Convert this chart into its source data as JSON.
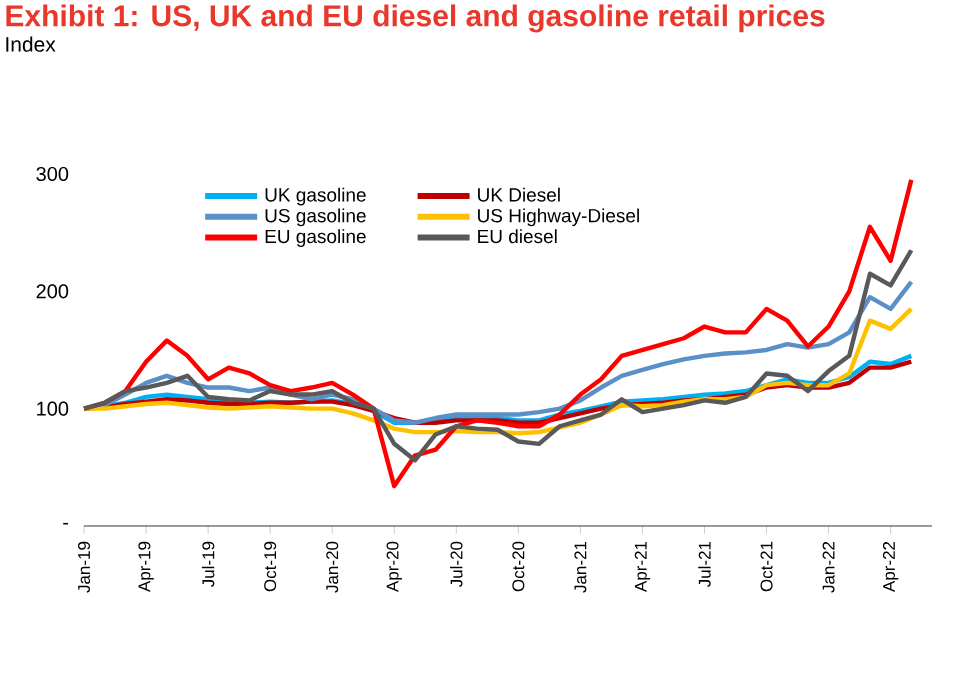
{
  "chart_data": {
    "type": "line",
    "title": "Exhibit 1: US, UK and EU diesel and gasoline retail prices",
    "subtitle": "Index",
    "x": [
      "2019-01",
      "2019-02",
      "2019-03",
      "2019-04",
      "2019-05",
      "2019-06",
      "2019-07",
      "2019-08",
      "2019-09",
      "2019-10",
      "2019-11",
      "2019-12",
      "2020-01",
      "2020-02",
      "2020-03",
      "2020-04",
      "2020-05",
      "2020-06",
      "2020-07",
      "2020-08",
      "2020-09",
      "2020-10",
      "2020-11",
      "2020-12",
      "2021-01",
      "2021-02",
      "2021-03",
      "2021-04",
      "2021-05",
      "2021-06",
      "2021-07",
      "2021-08",
      "2021-09",
      "2021-10",
      "2021-11",
      "2021-12",
      "2022-01",
      "2022-02",
      "2022-03",
      "2022-04",
      "2022-05"
    ],
    "series": [
      {
        "name": "UK gasoline",
        "color": "#00b0f0",
        "values": [
          100,
          102,
          105,
          110,
          112,
          110,
          108,
          106,
          105,
          106,
          105,
          106,
          107,
          104,
          98,
          88,
          88,
          90,
          92,
          93,
          92,
          90,
          90,
          95,
          98,
          102,
          106,
          107,
          108,
          110,
          112,
          113,
          115,
          120,
          125,
          122,
          122,
          127,
          140,
          138,
          145
        ]
      },
      {
        "name": "UK Diesel",
        "color": "#c00000",
        "values": [
          100,
          101,
          104,
          106,
          108,
          107,
          105,
          104,
          104,
          105,
          105,
          106,
          106,
          103,
          98,
          92,
          88,
          88,
          90,
          90,
          90,
          88,
          88,
          92,
          96,
          100,
          103,
          104,
          105,
          107,
          108,
          110,
          112,
          118,
          120,
          118,
          118,
          122,
          135,
          135,
          140
        ]
      },
      {
        "name": "US gasoline",
        "color": "#5b8fc7",
        "values": [
          100,
          103,
          112,
          122,
          128,
          122,
          118,
          118,
          115,
          118,
          112,
          108,
          112,
          108,
          100,
          90,
          88,
          92,
          95,
          95,
          95,
          95,
          97,
          100,
          107,
          118,
          128,
          133,
          138,
          142,
          145,
          147,
          148,
          150,
          155,
          152,
          155,
          165,
          195,
          185,
          208
        ]
      },
      {
        "name": "US Highway-Diesel",
        "color": "#ffc000",
        "values": [
          100,
          100,
          102,
          104,
          105,
          103,
          101,
          100,
          101,
          102,
          101,
          100,
          100,
          96,
          90,
          83,
          80,
          80,
          81,
          80,
          80,
          79,
          80,
          84,
          88,
          95,
          103,
          102,
          103,
          106,
          108,
          108,
          110,
          120,
          122,
          120,
          120,
          130,
          175,
          168,
          185
        ]
      },
      {
        "name": "EU gasoline",
        "color": "#ff0000",
        "values": [
          100,
          105,
          115,
          140,
          158,
          145,
          125,
          135,
          130,
          120,
          115,
          118,
          122,
          112,
          100,
          34,
          60,
          65,
          85,
          90,
          88,
          85,
          85,
          95,
          112,
          125,
          145,
          150,
          155,
          160,
          170,
          165,
          165,
          185,
          175,
          153,
          170,
          200,
          255,
          226,
          295
        ]
      },
      {
        "name": "EU diesel",
        "color": "#595959",
        "values": [
          100,
          105,
          115,
          118,
          122,
          128,
          110,
          108,
          107,
          115,
          112,
          112,
          115,
          105,
          100,
          70,
          56,
          78,
          85,
          83,
          82,
          72,
          70,
          85,
          90,
          95,
          108,
          97,
          100,
          103,
          107,
          105,
          110,
          130,
          128,
          115,
          132,
          145,
          215,
          205,
          235
        ]
      }
    ],
    "xlim": [
      "2019-01",
      "2022-06"
    ],
    "xticks": [
      {
        "value": "2019-01",
        "label": "Jan-19"
      },
      {
        "value": "2019-04",
        "label": "Apr-19"
      },
      {
        "value": "2019-07",
        "label": "Jul-19"
      },
      {
        "value": "2019-10",
        "label": "Oct-19"
      },
      {
        "value": "2020-01",
        "label": "Jan-20"
      },
      {
        "value": "2020-04",
        "label": "Apr-20"
      },
      {
        "value": "2020-07",
        "label": "Jul-20"
      },
      {
        "value": "2020-10",
        "label": "Oct-20"
      },
      {
        "value": "2021-01",
        "label": "Jan-21"
      },
      {
        "value": "2021-04",
        "label": "Apr-21"
      },
      {
        "value": "2021-07",
        "label": "Jul-21"
      },
      {
        "value": "2021-10",
        "label": "Oct-21"
      },
      {
        "value": "2022-01",
        "label": "Jan-22"
      },
      {
        "value": "2022-04",
        "label": "Apr-22"
      }
    ],
    "ylim": [
      0,
      300
    ],
    "yticks": [
      {
        "value": 0,
        "label": "-"
      },
      100,
      200,
      300
    ],
    "legend": "top"
  }
}
